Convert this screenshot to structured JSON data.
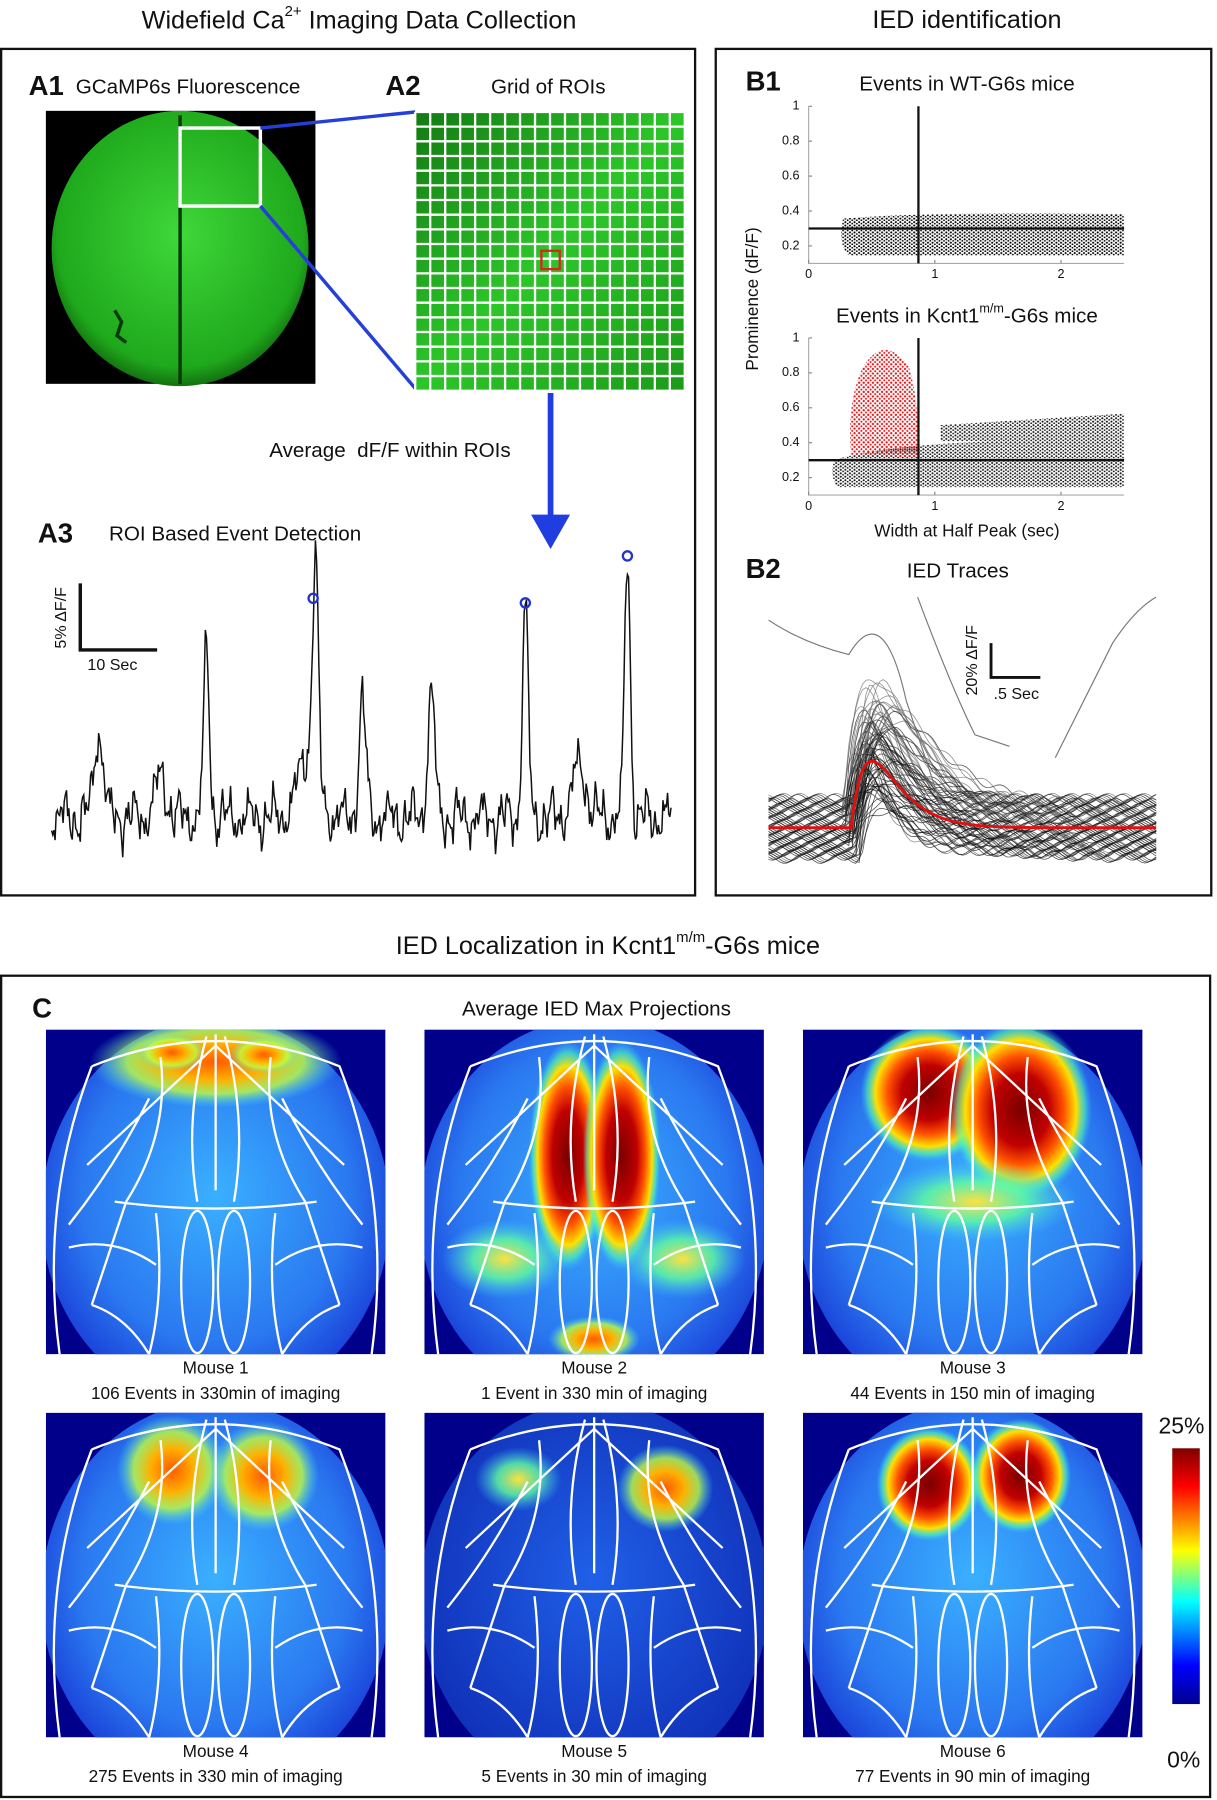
{
  "left_title": [
    "Widefield Ca",
    "2+",
    " Imaging Data Collection"
  ],
  "right_title": "IED identification",
  "panel_a1": {
    "label": "A1",
    "title": "GCaMP6s Fluorescence"
  },
  "panel_a2": {
    "label": "A2",
    "title": "Grid of ROIs",
    "arrow_label": "Average  dF/F within ROIs"
  },
  "panel_a3": {
    "label": "A3",
    "title": "ROI Based Event Detection",
    "scale_y": "5% ΔF/F",
    "scale_x": "10 Sec"
  },
  "panel_b1": {
    "label": "B1",
    "y_label": "Prominence (dF/F)",
    "x_label": "Width at Half Peak (sec)",
    "plots": [
      {
        "title": [
          "Events in WT-G6s mice"
        ],
        "xlim": [
          0,
          2.5
        ],
        "ylim": [
          0.1,
          1
        ],
        "xticks": [
          0,
          1,
          2
        ],
        "yticks": [
          0.2,
          0.4,
          0.6,
          0.8,
          1
        ],
        "threshold_x": 0.87,
        "threshold_y": 0.3
      },
      {
        "title": [
          "Events in Kcnt1",
          "m/m",
          "-G6s mice"
        ],
        "xlim": [
          0,
          2.5
        ],
        "ylim": [
          0.1,
          1
        ],
        "xticks": [
          0,
          1,
          2
        ],
        "yticks": [
          0.2,
          0.4,
          0.6,
          0.8,
          1
        ],
        "threshold_x": 0.87,
        "threshold_y": 0.3
      }
    ]
  },
  "panel_b2": {
    "label": "B2",
    "title": "IED Traces",
    "scale_y": "20% ΔF/F",
    "scale_x": ".5 Sec"
  },
  "section_c_title": [
    "IED Localization in Kcnt1",
    "m/m",
    "-G6s mice"
  ],
  "panel_c": {
    "label": "C",
    "title": "Average IED Max Projections",
    "mice": [
      {
        "name": "Mouse 1",
        "caption": "106 Events in 330min of imaging"
      },
      {
        "name": "Mouse 2",
        "caption": "1 Event in 330 min of imaging"
      },
      {
        "name": "Mouse 3",
        "caption": "44 Events in 150 min of imaging"
      },
      {
        "name": "Mouse 4",
        "caption": "275 Events in 330 min of imaging"
      },
      {
        "name": "Mouse 5",
        "caption": "5 Events in 30 min of imaging"
      },
      {
        "name": "Mouse 6",
        "caption": "77 Events in 90 min of imaging"
      }
    ],
    "colorbar": {
      "max_label": "25%",
      "min_label": "0%"
    }
  }
}
